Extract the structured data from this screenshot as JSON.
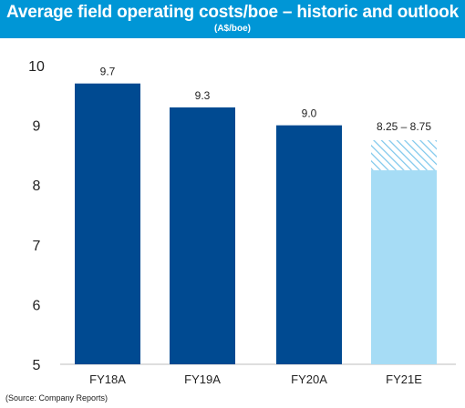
{
  "header": {
    "title": "Average field operating costs/boe – historic and outlook",
    "subtitle": "(A$/boe)"
  },
  "source": "(Source: Company Reports)",
  "colors": {
    "header": "#0096d6",
    "bar": "#004a91",
    "forecast_fill": "#a6dcf5",
    "forecast_hatch": "#7fc8ec"
  },
  "chart_data": {
    "type": "bar",
    "categories": [
      "FY18A",
      "FY19A",
      "FY20A",
      "FY21E"
    ],
    "values": [
      9.7,
      9.3,
      9.0,
      8.5
    ],
    "labels": [
      "9.7",
      "9.3",
      "9.0",
      "8.25 – 8.75"
    ],
    "forecast_range": {
      "category": "FY21E",
      "low": 8.25,
      "high": 8.75
    },
    "ylim": [
      5,
      10
    ],
    "yticks": [
      5,
      6,
      7,
      8,
      9,
      10
    ],
    "title": "Average field operating costs/boe – historic and outlook",
    "ylabel": "(A$/boe)",
    "grid": false
  }
}
